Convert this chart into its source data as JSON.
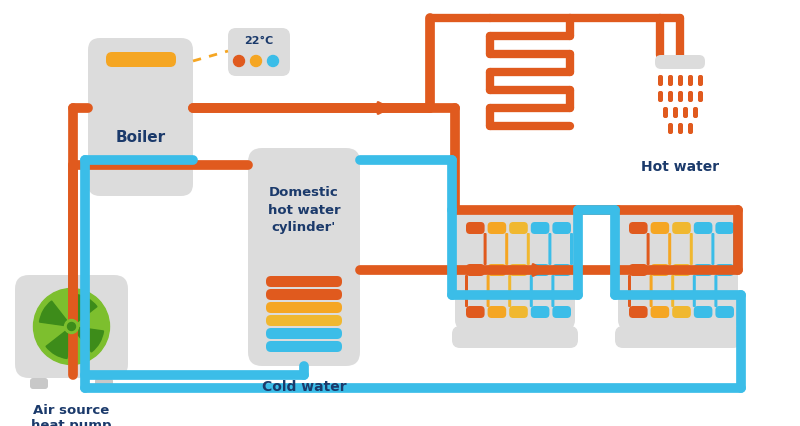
{
  "bg_color": "#ffffff",
  "orange": "#E05A1E",
  "blue": "#3BBDE8",
  "dark_blue": "#1B3A6B",
  "gray_box": "#C8C8C8",
  "gray_light": "#DCDCDC",
  "yellow_orange": "#F5A623",
  "amber": "#F0B830",
  "green_dark": "#3D8C1A",
  "green_light": "#7DBF2E",
  "label_boiler": "Boiler",
  "label_ashp": "Air source\nheat pump",
  "label_dhwc": "Domestic\nhot water\ncylinder'",
  "label_cold": "Cold water",
  "label_hot": "Hot water",
  "label_temp": "22°C",
  "pipe_lw": 7
}
